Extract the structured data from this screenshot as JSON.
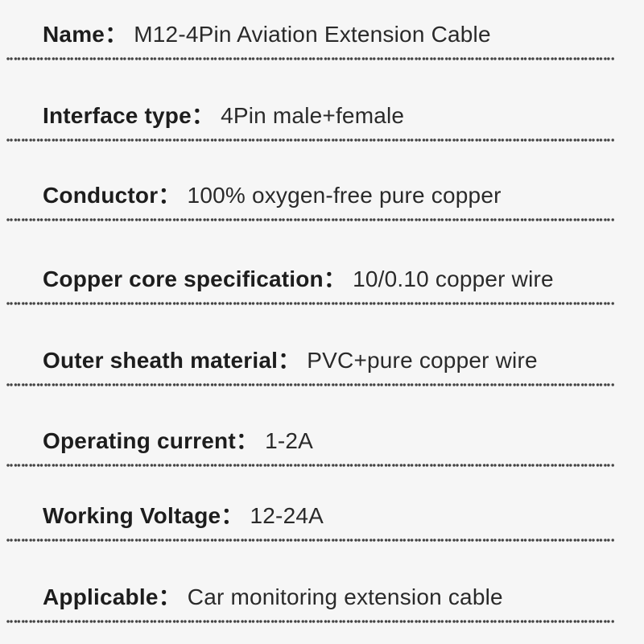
{
  "theme": {
    "bg": "#f6f6f6",
    "label-color": "#1d1d1d",
    "value-color": "#2a2a2a",
    "dot-color": "#434343"
  },
  "colon": "：",
  "specs": [
    {
      "label": "Name",
      "value": "M12-4Pin Aviation Extension Cable"
    },
    {
      "label": "Interface type",
      "value": "4Pin male+female"
    },
    {
      "label": "Conductor",
      "value": "100% oxygen-free pure copper"
    },
    {
      "label": "Copper core specification",
      "value": "10/0.10 copper wire"
    },
    {
      "label": "Outer sheath material",
      "value": "PVC+pure copper wire"
    },
    {
      "label": "Operating current",
      "value": "1-2A"
    },
    {
      "label": "Working Voltage",
      "value": "12-24A"
    },
    {
      "label": "Applicable",
      "value": "Car monitoring extension cable"
    }
  ]
}
